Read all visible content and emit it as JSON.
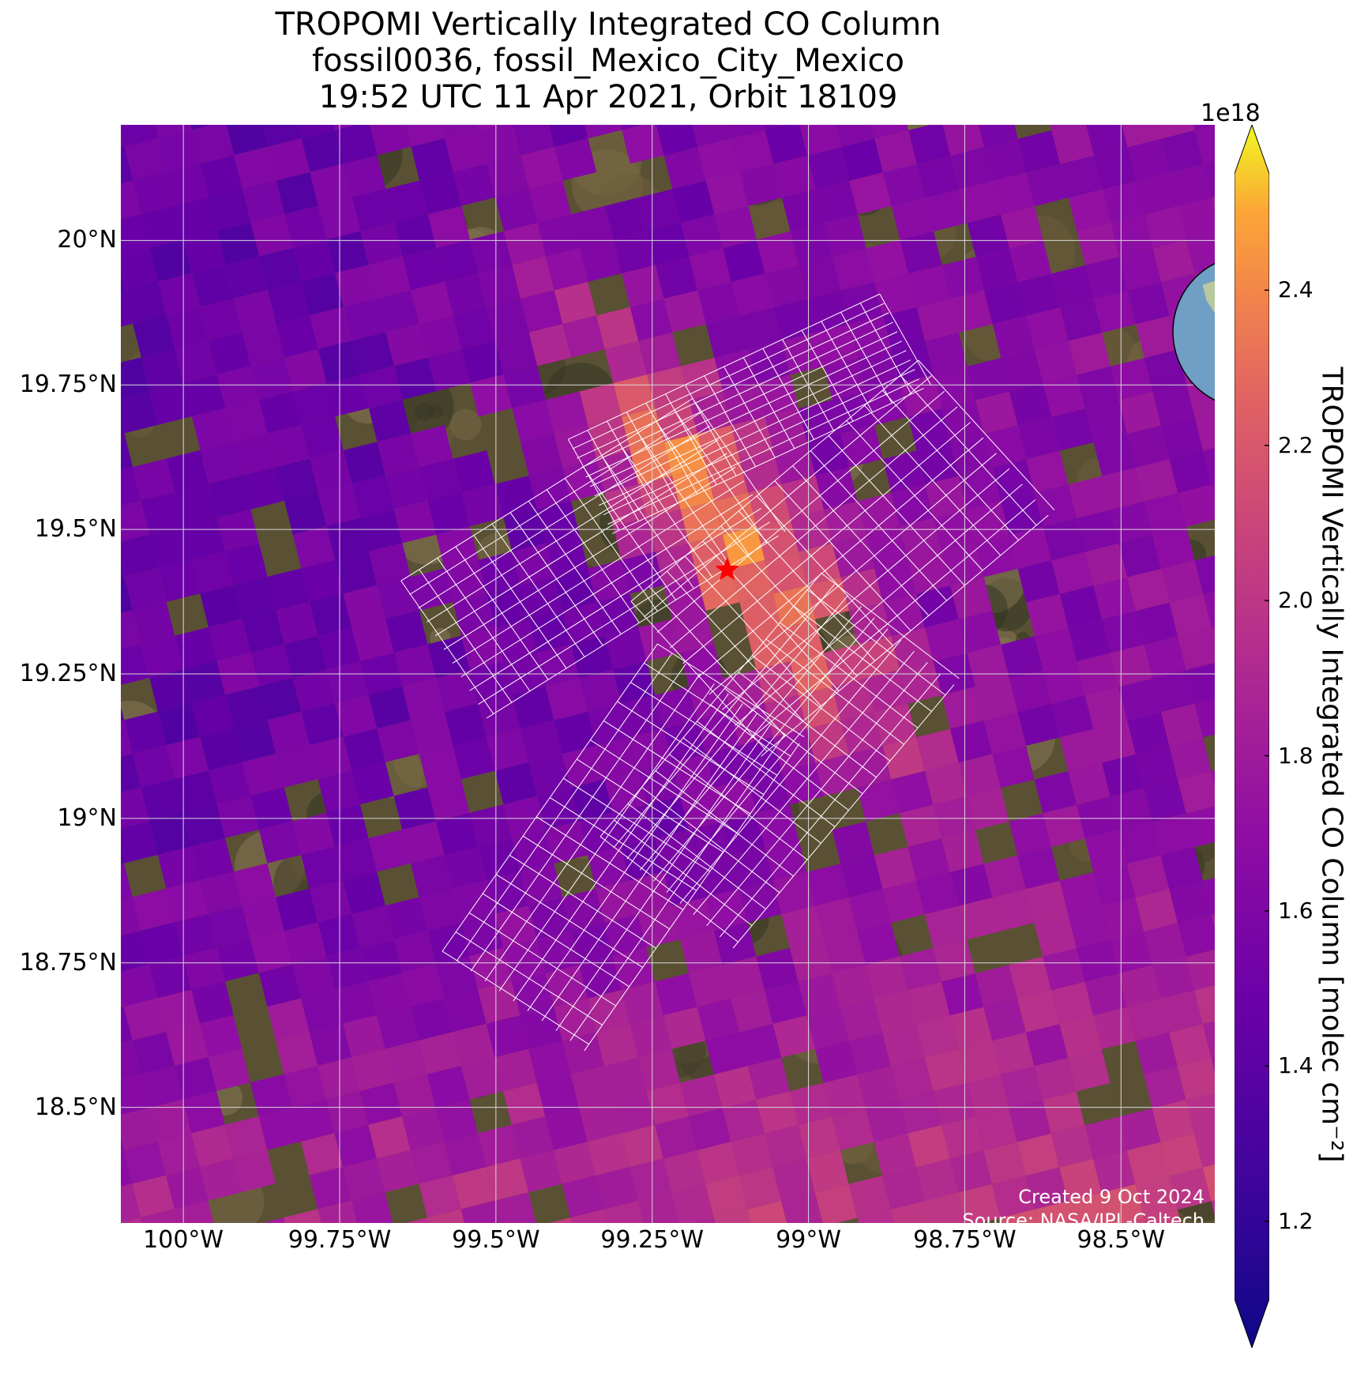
{
  "title": {
    "line1": "TROPOMI Vertically Integrated CO Column",
    "line2": "fossil0036, fossil_Mexico_City_Mexico",
    "line3": "19:52 UTC 11 Apr 2021, Orbit 18109"
  },
  "map": {
    "lon_range": [
      -100.1,
      -98.35
    ],
    "lat_range": [
      18.3,
      20.2
    ],
    "target": {
      "lon": -99.13,
      "lat": 19.43,
      "marker": "red-star"
    },
    "lat_ticks": [
      {
        "value": 20.0,
        "label": "20°N"
      },
      {
        "value": 19.75,
        "label": "19.75°N"
      },
      {
        "value": 19.5,
        "label": "19.5°N"
      },
      {
        "value": 19.25,
        "label": "19.25°N"
      },
      {
        "value": 19.0,
        "label": "19°N"
      },
      {
        "value": 18.75,
        "label": "18.75°N"
      },
      {
        "value": 18.5,
        "label": "18.5°N"
      }
    ],
    "lon_ticks": [
      {
        "value": -100.0,
        "label": "100°W"
      },
      {
        "value": -99.75,
        "label": "99.75°W"
      },
      {
        "value": -99.5,
        "label": "99.5°W"
      },
      {
        "value": -99.25,
        "label": "99.25°W"
      },
      {
        "value": -99.0,
        "label": "99°W"
      },
      {
        "value": -98.75,
        "label": "98.75°W"
      },
      {
        "value": -98.5,
        "label": "98.5°W"
      }
    ],
    "background": "satellite imagery",
    "gridlines": true
  },
  "colorbar": {
    "label": "TROPOMI Vertically Integrated CO Column [molec cm⁻²]",
    "exponent": "1e18",
    "colormap": "plasma",
    "min": 1.1,
    "max": 2.55,
    "extend": "both",
    "ticks": [
      {
        "value": 1.2,
        "label": "1.2"
      },
      {
        "value": 1.4,
        "label": "1.4"
      },
      {
        "value": 1.6,
        "label": "1.6"
      },
      {
        "value": 1.8,
        "label": "1.8"
      },
      {
        "value": 2.0,
        "label": "2.0"
      },
      {
        "value": 2.2,
        "label": "2.2"
      },
      {
        "value": 2.4,
        "label": "2.4"
      }
    ]
  },
  "credits": {
    "created": "Created 9 Oct 2024",
    "source": "Source: NASA/JPL-Caltech"
  },
  "colors": {
    "grid": "#d9d9d9",
    "target_marker": "#ff0000",
    "footprint_mesh": "#ffffff",
    "credits_text": "#ffffff"
  }
}
